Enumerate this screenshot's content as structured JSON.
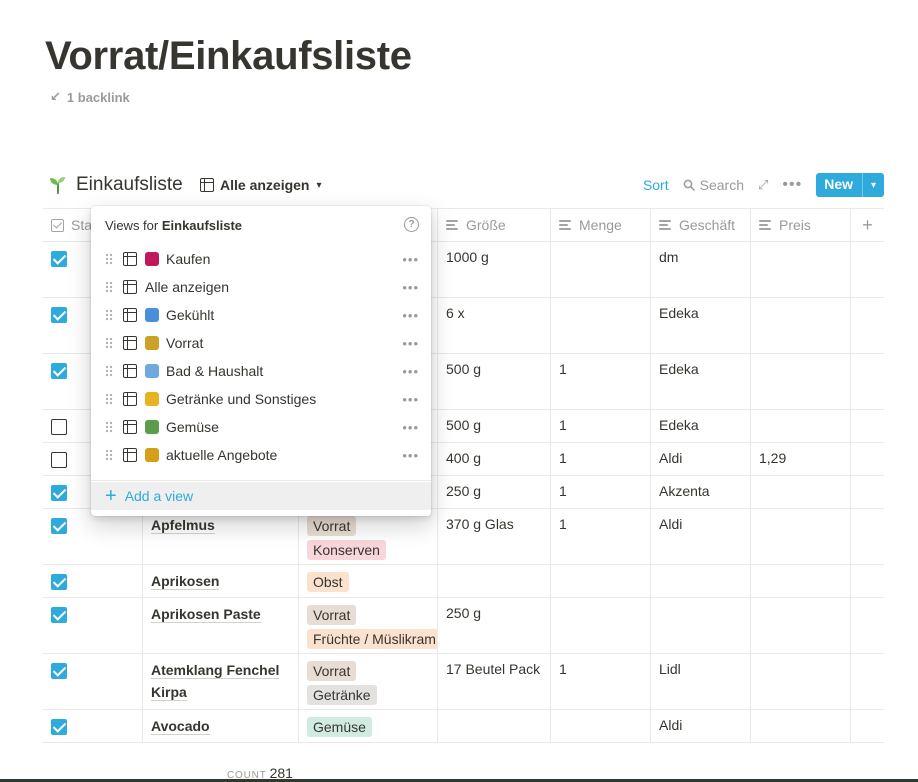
{
  "page": {
    "title": "Vorrat/Einkaufsliste",
    "backlink": "1 backlink"
  },
  "database": {
    "title": "Einkaufsliste",
    "current_view": "Alle anzeigen",
    "toolbar": {
      "sort": "Sort",
      "search": "Search",
      "new": "New"
    }
  },
  "columns": [
    "Status",
    "",
    "",
    "Größe",
    "Menge",
    "Geschäft",
    "Preis",
    "+"
  ],
  "rows": [
    {
      "checked": true,
      "name": "",
      "tags": [],
      "groesse": "1000 g",
      "menge": "",
      "geschaeft": "dm",
      "preis": ""
    },
    {
      "checked": true,
      "name": "",
      "tags": [],
      "groesse": "6 x",
      "menge": "",
      "geschaeft": "Edeka",
      "preis": ""
    },
    {
      "checked": true,
      "name": "",
      "tags": [],
      "groesse": "500 g",
      "menge": "1",
      "geschaeft": "Edeka",
      "preis": ""
    },
    {
      "checked": false,
      "name": "",
      "tags": [],
      "groesse": "500 g",
      "menge": "1",
      "geschaeft": "Edeka",
      "preis": ""
    },
    {
      "checked": false,
      "name": "",
      "tags": [],
      "groesse": "400 g",
      "menge": "1",
      "geschaeft": "Aldi",
      "preis": "1,29"
    },
    {
      "checked": true,
      "name": "",
      "tags": [],
      "groesse": "250 g",
      "menge": "1",
      "geschaeft": "Akzenta",
      "preis": ""
    },
    {
      "checked": true,
      "name": "Apfelmus",
      "tags": [
        "Vorrat",
        "Konserven"
      ],
      "groesse": "370 g Glas",
      "menge": "1",
      "geschaeft": "Aldi",
      "preis": ""
    },
    {
      "checked": true,
      "name": "Aprikosen",
      "tags": [
        "Obst"
      ],
      "groesse": "",
      "menge": "",
      "geschaeft": "",
      "preis": ""
    },
    {
      "checked": true,
      "name": "Aprikosen Paste",
      "tags": [
        "Vorrat",
        "Früchte / Müslikram"
      ],
      "groesse": "250 g",
      "menge": "",
      "geschaeft": "",
      "preis": ""
    },
    {
      "checked": true,
      "name": "Atemklang Fenchel Kirpa",
      "tags": [
        "Vorrat",
        "Getränke"
      ],
      "groesse": "17 Beutel Pack",
      "menge": "1",
      "geschaeft": "Lidl",
      "preis": ""
    },
    {
      "checked": true,
      "name": "Avocado",
      "tags": [
        "Gemüse"
      ],
      "groesse": "",
      "menge": "",
      "geschaeft": "Aldi",
      "preis": ""
    }
  ],
  "tag_colors": {
    "Vorrat": "#e8ddd4",
    "Konserven": "#f8d6da",
    "Obst": "#fbe2cf",
    "Früchte / Müslikram": "#fbe2cf",
    "Getränke": "#e3e2e0",
    "Gemüse": "#d1ebe2"
  },
  "footer": {
    "count_label": "COUNT",
    "count_value": "281"
  },
  "views_popup": {
    "heading_prefix": "Views for ",
    "heading_db": "Einkaufsliste",
    "help": "?",
    "items": [
      {
        "emoji": "shopping-bags-icon",
        "color": "#c2185b",
        "label": "Kaufen"
      },
      {
        "emoji": "",
        "color": "",
        "label": "Alle anzeigen"
      },
      {
        "emoji": "cold-face-icon",
        "color": "#4a8fd8",
        "label": "Gekühlt"
      },
      {
        "emoji": "jar-icon",
        "color": "#c9a227",
        "label": "Vorrat"
      },
      {
        "emoji": "squeeze-bottle-icon",
        "color": "#6fa8dc",
        "label": "Bad & Haushalt"
      },
      {
        "emoji": "clinking-glasses-icon",
        "color": "#e6b422",
        "label": "Getränke und Sonstiges"
      },
      {
        "emoji": "salad-icon",
        "color": "#5a9e4b",
        "label": "Gemüse"
      },
      {
        "emoji": "money-bag-icon",
        "color": "#d4a017",
        "label": "aktuelle Angebote"
      }
    ],
    "add_label": "Add a view"
  }
}
